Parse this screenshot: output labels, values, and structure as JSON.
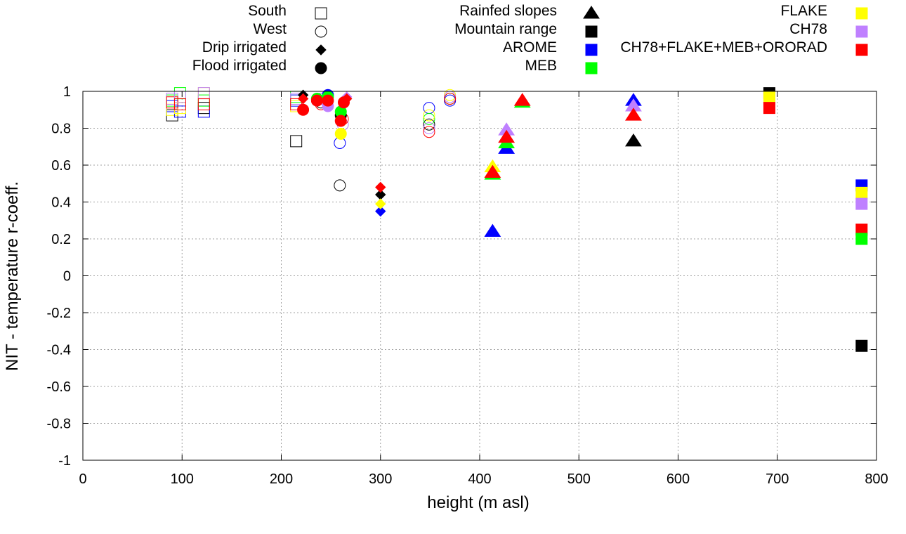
{
  "chart_data": {
    "type": "scatter",
    "title": "",
    "xlabel": "height (m asl)",
    "ylabel": "NIT - temperature r-coeff.",
    "xlim": [
      0,
      800
    ],
    "ylim": [
      -1,
      1
    ],
    "xticks": [
      "0",
      "100",
      "200",
      "300",
      "400",
      "500",
      "600",
      "700",
      "800"
    ],
    "yticks": [
      "-1",
      "-0.8",
      "-0.6",
      "-0.4",
      "-0.2",
      "0",
      "0.2",
      "0.4",
      "0.6",
      "0.8",
      "1"
    ],
    "grid": true,
    "legend_placement": "top (outside plot)",
    "shape_legend": [
      {
        "label": "South",
        "shape": "square-open"
      },
      {
        "label": "West",
        "shape": "circle-open"
      },
      {
        "label": "Drip irrigated",
        "shape": "diamond"
      },
      {
        "label": "Flood irrigated",
        "shape": "circle"
      },
      {
        "label": "Rainfed slopes",
        "shape": "triangle"
      },
      {
        "label": "Mountain range",
        "shape": "square"
      }
    ],
    "series_legend": [
      {
        "label": "AROME",
        "color": "#0000ff"
      },
      {
        "label": "MEB",
        "color": "#00ff00"
      },
      {
        "label": "FLAKE",
        "color": "#ffff00"
      },
      {
        "label": "CH78",
        "color": "#bf80ff"
      },
      {
        "label": "CH78+FLAKE+MEB+ORORAD",
        "color": "#ff0000"
      }
    ],
    "black_series_color": "#000000",
    "points": [
      {
        "x": 90,
        "y": 0.87,
        "shape": "square-open",
        "color": "#000000"
      },
      {
        "x": 90,
        "y": 0.92,
        "shape": "square-open",
        "color": "#0000ff"
      },
      {
        "x": 90,
        "y": 0.95,
        "shape": "square-open",
        "color": "#00ff00"
      },
      {
        "x": 90,
        "y": 0.9,
        "shape": "square-open",
        "color": "#ffff00"
      },
      {
        "x": 90,
        "y": 0.96,
        "shape": "square-open",
        "color": "#bf80ff"
      },
      {
        "x": 90,
        "y": 0.94,
        "shape": "square-open",
        "color": "#ff0000"
      },
      {
        "x": 98,
        "y": 0.89,
        "shape": "square-open",
        "color": "#0000ff"
      },
      {
        "x": 98,
        "y": 0.99,
        "shape": "square-open",
        "color": "#00ff00"
      },
      {
        "x": 98,
        "y": 0.91,
        "shape": "square-open",
        "color": "#ffff00"
      },
      {
        "x": 98,
        "y": 0.97,
        "shape": "square-open",
        "color": "#bf80ff"
      },
      {
        "x": 98,
        "y": 0.93,
        "shape": "square-open",
        "color": "#ff0000"
      },
      {
        "x": 122,
        "y": 0.91,
        "shape": "square-open",
        "color": "#000000"
      },
      {
        "x": 122,
        "y": 0.89,
        "shape": "square-open",
        "color": "#0000ff"
      },
      {
        "x": 122,
        "y": 0.95,
        "shape": "square-open",
        "color": "#00ff00"
      },
      {
        "x": 122,
        "y": 0.99,
        "shape": "square-open",
        "color": "#ffff00"
      },
      {
        "x": 122,
        "y": 0.99,
        "shape": "square-open",
        "color": "#bf80ff"
      },
      {
        "x": 122,
        "y": 0.93,
        "shape": "square-open",
        "color": "#ff0000"
      },
      {
        "x": 215,
        "y": 0.73,
        "shape": "square-open",
        "color": "#000000"
      },
      {
        "x": 215,
        "y": 0.95,
        "shape": "square-open",
        "color": "#0000ff"
      },
      {
        "x": 215,
        "y": 0.97,
        "shape": "square-open",
        "color": "#00ff00"
      },
      {
        "x": 215,
        "y": 0.92,
        "shape": "square-open",
        "color": "#ffff00"
      },
      {
        "x": 215,
        "y": 0.96,
        "shape": "square-open",
        "color": "#bf80ff"
      },
      {
        "x": 215,
        "y": 0.93,
        "shape": "square-open",
        "color": "#ff0000"
      },
      {
        "x": 240,
        "y": 0.94,
        "shape": "circle-open",
        "color": "#000000"
      },
      {
        "x": 240,
        "y": 0.96,
        "shape": "circle-open",
        "color": "#0000ff"
      },
      {
        "x": 240,
        "y": 0.96,
        "shape": "circle-open",
        "color": "#bf80ff"
      },
      {
        "x": 240,
        "y": 0.93,
        "shape": "circle-open",
        "color": "#ff0000"
      },
      {
        "x": 259,
        "y": 0.72,
        "shape": "circle-open",
        "color": "#0000ff"
      },
      {
        "x": 259,
        "y": 0.49,
        "shape": "circle-open",
        "color": "#000000"
      },
      {
        "x": 262,
        "y": 0.82,
        "shape": "circle-open",
        "color": "#bf80ff"
      },
      {
        "x": 262,
        "y": 0.85,
        "shape": "circle-open",
        "color": "#ff0000"
      },
      {
        "x": 349,
        "y": 0.91,
        "shape": "circle-open",
        "color": "#0000ff"
      },
      {
        "x": 349,
        "y": 0.82,
        "shape": "circle-open",
        "color": "#000000"
      },
      {
        "x": 349,
        "y": 0.85,
        "shape": "circle-open",
        "color": "#00ff00"
      },
      {
        "x": 349,
        "y": 0.87,
        "shape": "circle-open",
        "color": "#ffff00"
      },
      {
        "x": 349,
        "y": 0.8,
        "shape": "circle-open",
        "color": "#bf80ff"
      },
      {
        "x": 349,
        "y": 0.78,
        "shape": "circle-open",
        "color": "#ff0000"
      },
      {
        "x": 370,
        "y": 0.98,
        "shape": "circle-open",
        "color": "#ffff00"
      },
      {
        "x": 370,
        "y": 0.96,
        "shape": "circle-open",
        "color": "#00ff00"
      },
      {
        "x": 370,
        "y": 0.95,
        "shape": "circle-open",
        "color": "#0000ff"
      },
      {
        "x": 370,
        "y": 0.97,
        "shape": "circle-open",
        "color": "#bf80ff"
      },
      {
        "x": 370,
        "y": 0.96,
        "shape": "circle-open",
        "color": "#ff0000"
      },
      {
        "x": 222,
        "y": 0.98,
        "shape": "diamond",
        "color": "#000000"
      },
      {
        "x": 222,
        "y": 0.96,
        "shape": "diamond",
        "color": "#ff0000"
      },
      {
        "x": 266,
        "y": 0.97,
        "shape": "diamond",
        "color": "#bf80ff"
      },
      {
        "x": 266,
        "y": 0.96,
        "shape": "diamond",
        "color": "#ff0000"
      },
      {
        "x": 300,
        "y": 0.44,
        "shape": "diamond",
        "color": "#000000"
      },
      {
        "x": 300,
        "y": 0.35,
        "shape": "diamond",
        "color": "#0000ff"
      },
      {
        "x": 300,
        "y": 0.39,
        "shape": "diamond",
        "color": "#ffff00"
      },
      {
        "x": 300,
        "y": 0.48,
        "shape": "diamond",
        "color": "#ff0000"
      },
      {
        "x": 222,
        "y": 0.9,
        "shape": "circle",
        "color": "#ff0000"
      },
      {
        "x": 236,
        "y": 0.96,
        "shape": "circle",
        "color": "#00ff00"
      },
      {
        "x": 236,
        "y": 0.95,
        "shape": "circle",
        "color": "#ff0000"
      },
      {
        "x": 247,
        "y": 0.98,
        "shape": "circle",
        "color": "#0000ff"
      },
      {
        "x": 247,
        "y": 0.97,
        "shape": "circle",
        "color": "#00ff00"
      },
      {
        "x": 247,
        "y": 0.92,
        "shape": "circle",
        "color": "#bf80ff"
      },
      {
        "x": 247,
        "y": 0.95,
        "shape": "circle",
        "color": "#ff0000"
      },
      {
        "x": 260,
        "y": 0.87,
        "shape": "circle",
        "color": "#000000"
      },
      {
        "x": 260,
        "y": 0.89,
        "shape": "circle",
        "color": "#00ff00"
      },
      {
        "x": 260,
        "y": 0.77,
        "shape": "circle",
        "color": "#ffff00"
      },
      {
        "x": 260,
        "y": 0.84,
        "shape": "circle",
        "color": "#ff0000"
      },
      {
        "x": 263,
        "y": 0.94,
        "shape": "circle",
        "color": "#ff0000"
      },
      {
        "x": 413,
        "y": 0.24,
        "shape": "triangle",
        "color": "#0000ff"
      },
      {
        "x": 413,
        "y": 0.55,
        "shape": "triangle",
        "color": "#00ff00"
      },
      {
        "x": 413,
        "y": 0.59,
        "shape": "triangle",
        "color": "#ffff00"
      },
      {
        "x": 413,
        "y": 0.56,
        "shape": "triangle",
        "color": "#ff0000"
      },
      {
        "x": 427,
        "y": 0.69,
        "shape": "triangle",
        "color": "#0000ff"
      },
      {
        "x": 427,
        "y": 0.72,
        "shape": "triangle",
        "color": "#00ff00"
      },
      {
        "x": 427,
        "y": 0.79,
        "shape": "triangle",
        "color": "#bf80ff"
      },
      {
        "x": 427,
        "y": 0.75,
        "shape": "triangle",
        "color": "#ff0000"
      },
      {
        "x": 443,
        "y": 0.94,
        "shape": "triangle",
        "color": "#00ff00"
      },
      {
        "x": 443,
        "y": 0.95,
        "shape": "triangle",
        "color": "#ff0000"
      },
      {
        "x": 555,
        "y": 0.73,
        "shape": "triangle",
        "color": "#000000"
      },
      {
        "x": 555,
        "y": 0.95,
        "shape": "triangle",
        "color": "#0000ff"
      },
      {
        "x": 555,
        "y": 0.92,
        "shape": "triangle",
        "color": "#bf80ff"
      },
      {
        "x": 555,
        "y": 0.87,
        "shape": "triangle",
        "color": "#ff0000"
      },
      {
        "x": 692,
        "y": 0.99,
        "shape": "square",
        "color": "#000000"
      },
      {
        "x": 692,
        "y": 0.96,
        "shape": "square",
        "color": "#bf80ff"
      },
      {
        "x": 692,
        "y": 0.97,
        "shape": "square",
        "color": "#ffff00"
      },
      {
        "x": 692,
        "y": 0.91,
        "shape": "square",
        "color": "#ff0000"
      },
      {
        "x": 785,
        "y": 0.49,
        "shape": "square",
        "color": "#0000ff"
      },
      {
        "x": 785,
        "y": 0.45,
        "shape": "square",
        "color": "#ffff00"
      },
      {
        "x": 785,
        "y": 0.39,
        "shape": "square",
        "color": "#bf80ff"
      },
      {
        "x": 785,
        "y": 0.25,
        "shape": "square",
        "color": "#ff0000"
      },
      {
        "x": 785,
        "y": 0.2,
        "shape": "square",
        "color": "#00ff00"
      },
      {
        "x": 785,
        "y": -0.38,
        "shape": "square",
        "color": "#000000"
      }
    ]
  }
}
